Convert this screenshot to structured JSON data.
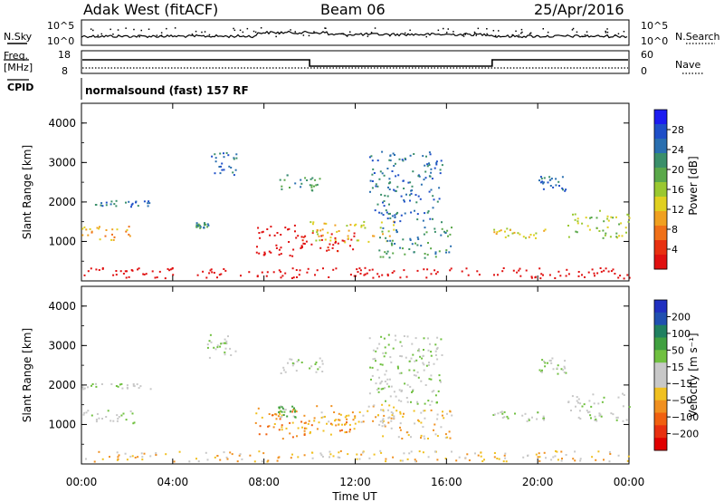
{
  "header": {
    "station": "Adak West (fitACF)",
    "beam": "Beam 06",
    "date": "25/Apr/2016"
  },
  "left_labels": {
    "nsky": "N.Sky",
    "freq": "Freq.",
    "freq_unit": "[MHz]",
    "cpid": "CPID"
  },
  "right_labels": {
    "nsearch": "N.Search",
    "nave": "Nave"
  },
  "noise_panel": {
    "left_ticks": [
      "10^5",
      "10^0"
    ],
    "right_ticks": [
      "10^5",
      "10^0"
    ]
  },
  "freq_panel": {
    "left_ticks": [
      "18",
      "8"
    ],
    "right_ticks": [
      "60",
      "0"
    ]
  },
  "cpid_text": "normalsound (fast) 157 RF",
  "power_colorbar": {
    "label": "Power [dB]",
    "ticks": [
      "4",
      "8",
      "12",
      "16",
      "20",
      "24",
      "28"
    ],
    "colors": [
      "#1c1cf0",
      "#1f4fc8",
      "#2a6fb0",
      "#3a8f6a",
      "#5aa84a",
      "#9ac830",
      "#e0d020",
      "#f0a020",
      "#f07018",
      "#e83010",
      "#e01010"
    ]
  },
  "velocity_colorbar": {
    "label": "Velocity [m s⁻¹]",
    "ticks": [
      "200",
      "100",
      "50",
      "15",
      "−15",
      "−50",
      "−100",
      "−200"
    ],
    "colors": [
      "#2030c0",
      "#2050b0",
      "#208060",
      "#40a040",
      "#70c040",
      "#c8c8c8",
      "#c8c8c8",
      "#f0c020",
      "#f09020",
      "#f06010",
      "#e83010",
      "#e00000"
    ]
  },
  "chart_data": [
    {
      "type": "heatmap",
      "panel": "power",
      "ylabel": "Slant Range [km]",
      "ylim": [
        0,
        4500
      ],
      "yticks": [
        1000,
        2000,
        3000,
        4000
      ],
      "xlim": [
        0,
        24
      ],
      "xticks": [
        "00:00",
        "04:00",
        "08:00",
        "12:00",
        "16:00",
        "20:00",
        "00:00"
      ],
      "xtick_values": [
        0,
        4,
        8,
        12,
        16,
        20,
        24
      ],
      "grid": false,
      "scatter_regions": [
        {
          "t0": 0.0,
          "t1": 2.3,
          "r0": 1050,
          "r1": 1400,
          "level": 7
        },
        {
          "t0": 0.0,
          "t1": 3.0,
          "r0": 1900,
          "r1": 2050,
          "level": 2
        },
        {
          "t0": 5.5,
          "t1": 6.8,
          "r0": 2700,
          "r1": 3300,
          "level": 2
        },
        {
          "t0": 5.0,
          "t1": 5.6,
          "r0": 1350,
          "r1": 1500,
          "level": 3
        },
        {
          "t0": 7.6,
          "t1": 9.8,
          "r0": 650,
          "r1": 1450,
          "level": 13
        },
        {
          "t0": 9.6,
          "t1": 12.0,
          "r0": 750,
          "r1": 1250,
          "level": 10
        },
        {
          "t0": 10.0,
          "t1": 13.8,
          "r0": 1000,
          "r1": 1550,
          "level": 6
        },
        {
          "t0": 13.0,
          "t1": 16.2,
          "r0": 600,
          "r1": 1400,
          "level": 3
        },
        {
          "t0": 8.6,
          "t1": 10.6,
          "r0": 2300,
          "r1": 2700,
          "level": 3
        },
        {
          "t0": 12.6,
          "t1": 15.8,
          "r0": 1500,
          "r1": 3300,
          "level": 2
        },
        {
          "t0": 18.0,
          "t1": 20.3,
          "r0": 1100,
          "r1": 1350,
          "level": 6
        },
        {
          "t0": 20.0,
          "t1": 21.2,
          "r0": 2300,
          "r1": 2700,
          "level": 2
        },
        {
          "t0": 21.3,
          "t1": 24.0,
          "r0": 1100,
          "r1": 1800,
          "level": 5
        },
        {
          "t0": 0.0,
          "t1": 24.0,
          "r0": 80,
          "r1": 350,
          "level": 14
        }
      ]
    },
    {
      "type": "heatmap",
      "panel": "velocity",
      "ylabel": "Slant Range [km]",
      "xlabel": "Time UT",
      "ylim": [
        0,
        4500
      ],
      "yticks": [
        1000,
        2000,
        3000,
        4000
      ],
      "xlim": [
        0,
        24
      ],
      "xticks": [
        "00:00",
        "04:00",
        "08:00",
        "12:00",
        "16:00",
        "20:00",
        "00:00"
      ],
      "xtick_values": [
        0,
        4,
        8,
        12,
        16,
        20,
        24
      ],
      "grid": false,
      "scatter_regions": [
        {
          "t0": 0.0,
          "t1": 2.3,
          "r0": 1050,
          "r1": 1400,
          "level": 5
        },
        {
          "t0": 0.0,
          "t1": 3.0,
          "r0": 1900,
          "r1": 2050,
          "level": 5
        },
        {
          "t0": 5.5,
          "t1": 6.8,
          "r0": 2700,
          "r1": 3300,
          "level": 5
        },
        {
          "t0": 7.6,
          "t1": 9.8,
          "r0": 650,
          "r1": 1450,
          "level": 8
        },
        {
          "t0": 8.6,
          "t1": 9.4,
          "r0": 1200,
          "r1": 1500,
          "level": 4
        },
        {
          "t0": 9.6,
          "t1": 12.0,
          "r0": 750,
          "r1": 1250,
          "level": 8
        },
        {
          "t0": 10.0,
          "t1": 13.8,
          "r0": 1000,
          "r1": 1550,
          "level": 7
        },
        {
          "t0": 13.0,
          "t1": 16.2,
          "r0": 600,
          "r1": 1400,
          "level": 7
        },
        {
          "t0": 8.6,
          "t1": 10.6,
          "r0": 2300,
          "r1": 2700,
          "level": 5
        },
        {
          "t0": 12.6,
          "t1": 15.8,
          "r0": 1500,
          "r1": 3300,
          "level": 5
        },
        {
          "t0": 18.0,
          "t1": 20.3,
          "r0": 1100,
          "r1": 1350,
          "level": 5
        },
        {
          "t0": 20.0,
          "t1": 21.2,
          "r0": 2300,
          "r1": 2700,
          "level": 5
        },
        {
          "t0": 21.3,
          "t1": 24.0,
          "r0": 1100,
          "r1": 1800,
          "level": 5
        },
        {
          "t0": 0.0,
          "t1": 24.0,
          "r0": 80,
          "r1": 350,
          "level": 7
        }
      ]
    }
  ],
  "operating_params": {
    "freq_high_mhz": 12,
    "freq_low_mhz": 10,
    "freq_low_interval_hours": [
      10.0,
      18.0
    ]
  }
}
